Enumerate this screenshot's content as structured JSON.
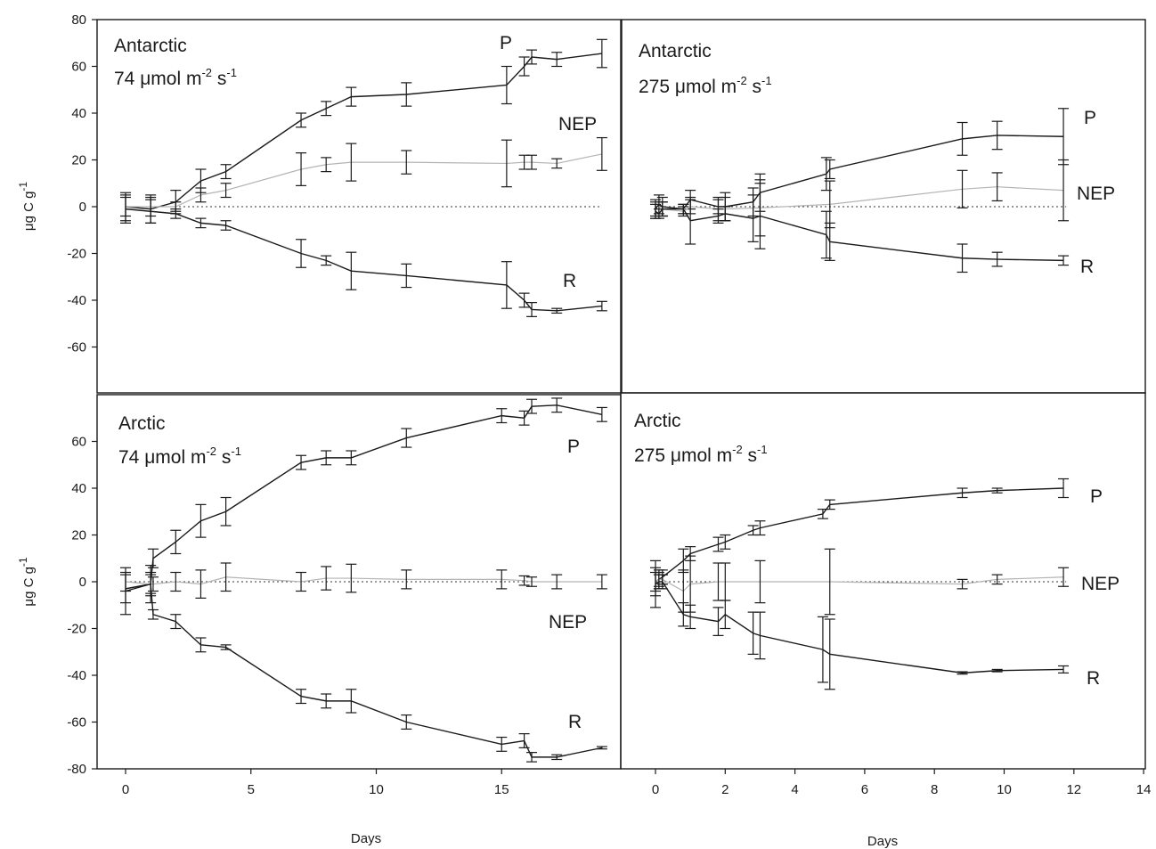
{
  "chart_data": [
    {
      "type": "line",
      "panel": "top-left",
      "title_line1": "Antarctic",
      "title_line2_value": "74",
      "title_line2_unit": "μmol m",
      "title_exp1": "-2",
      "title_s": "s",
      "title_exp2": "-1",
      "xlabel": "",
      "ylabel_main": "μg C g",
      "ylabel_exp": "-1",
      "xlim": [
        -1,
        20
      ],
      "ylim": [
        -80,
        80
      ],
      "yticks": [
        80,
        60,
        40,
        20,
        0,
        -20,
        -40,
        -60
      ],
      "xticks": [],
      "series": [
        {
          "name": "P",
          "color": "#1a1a1a",
          "x": [
            0,
            1,
            2,
            3,
            4,
            7,
            8,
            9,
            11.2,
            15.2,
            15.9,
            16.2,
            17.2,
            19
          ],
          "y": [
            0,
            -1,
            2,
            11,
            15,
            37,
            42,
            47,
            48,
            52,
            60,
            64,
            63,
            65.5
          ],
          "err": [
            6,
            6,
            5,
            5,
            3,
            3,
            3,
            4,
            5,
            8,
            4,
            3,
            3,
            6
          ]
        },
        {
          "name": "NEP",
          "color": "#b4b4b4",
          "x": [
            0,
            1,
            2,
            3,
            4,
            7,
            8,
            9,
            11.2,
            15.2,
            15.9,
            16.2,
            17.2,
            19
          ],
          "y": [
            0,
            0,
            0,
            5,
            7,
            16,
            18,
            19,
            19,
            18.5,
            19,
            19,
            18.5,
            22.5
          ],
          "err": [
            4,
            4,
            2,
            3,
            3,
            7,
            3,
            8,
            5,
            10,
            3,
            3,
            2,
            7
          ]
        },
        {
          "name": "R",
          "color": "#1a1a1a",
          "x": [
            0,
            1,
            2,
            3,
            4,
            7,
            8,
            9,
            11.2,
            15.2,
            15.9,
            16.2,
            17.2,
            19
          ],
          "y": [
            -1,
            -2,
            -3,
            -7,
            -8,
            -20,
            -23,
            -27.5,
            -29.5,
            -33.5,
            -40,
            -44,
            -44.5,
            -42.5
          ],
          "err": [
            6,
            5,
            2,
            2,
            2,
            6,
            2,
            8,
            5,
            10,
            3,
            3,
            1,
            2
          ]
        }
      ]
    },
    {
      "type": "line",
      "panel": "top-right",
      "title_line1": "Antarctic",
      "title_line2_value": "275",
      "title_line2_unit": "μmol m",
      "title_exp1": "-2",
      "title_s": "s",
      "title_exp2": "-1",
      "xlabel": "",
      "xlim": [
        -1,
        14
      ],
      "ylim": [
        -80,
        80
      ],
      "yticks": [],
      "xticks": [],
      "series": [
        {
          "name": "P",
          "color": "#1a1a1a",
          "x": [
            0,
            0.1,
            0.2,
            0.8,
            1,
            1.8,
            2,
            2.8,
            3,
            4.9,
            5,
            8.8,
            9.8,
            11.7
          ],
          "y": [
            -1,
            1,
            0,
            -1,
            3,
            0,
            0,
            2,
            6,
            14,
            16,
            29,
            30.5,
            30
          ],
          "err": [
            4,
            4,
            4,
            2,
            4,
            3,
            6,
            6,
            8,
            7,
            4,
            7,
            6,
            12
          ]
        },
        {
          "name": "NEP",
          "color": "#b4b4b4",
          "x": [
            0,
            0.2,
            0.8,
            1,
            1.8,
            2,
            3,
            5,
            8.8,
            9.8,
            11.7
          ],
          "y": [
            -1,
            -1,
            -2,
            0,
            -1,
            -1,
            -0.5,
            1,
            7.5,
            8.5,
            7
          ],
          "err": [
            3,
            3,
            2,
            3,
            5,
            5,
            12,
            10,
            8,
            6,
            13
          ]
        },
        {
          "name": "R",
          "color": "#1a1a1a",
          "x": [
            0,
            0.1,
            0.2,
            0.8,
            1,
            1.8,
            2,
            2.8,
            3,
            4.9,
            5,
            8.8,
            9.8,
            11.7
          ],
          "y": [
            -2,
            -3,
            -1,
            -1,
            -6,
            -4,
            -3,
            -5,
            -4,
            -12,
            -15,
            -22,
            -22.5,
            -23
          ],
          "err": [
            3,
            2,
            3,
            2,
            10,
            3,
            3,
            10,
            14,
            10,
            8,
            6,
            3,
            2
          ]
        }
      ]
    },
    {
      "type": "line",
      "panel": "bottom-left",
      "title_line1": "Arctic",
      "title_line2_value": "74",
      "title_line2_unit": "μmol m",
      "title_exp1": "-2",
      "title_s": "s",
      "title_exp2": "-1",
      "xlabel": "Days",
      "ylabel_main": "μg C g",
      "ylabel_exp": "-1",
      "xlim": [
        -1,
        20
      ],
      "ylim": [
        -80,
        80
      ],
      "yticks": [
        60,
        40,
        20,
        0,
        -20,
        -40,
        -60,
        -80
      ],
      "xticks": [
        0,
        5,
        10,
        15
      ],
      "series": [
        {
          "name": "P",
          "color": "#1a1a1a",
          "x": [
            0,
            1,
            1.1,
            2,
            3,
            4,
            7,
            8,
            9,
            11.2,
            15,
            15.9,
            16.2,
            17.2,
            19
          ],
          "y": [
            -3,
            -1,
            10,
            17,
            26,
            30,
            51,
            53,
            53,
            61.5,
            71,
            70,
            75,
            75.5,
            71.5
          ],
          "err": [
            6,
            5,
            4,
            5,
            7,
            6,
            3,
            3,
            3,
            4,
            3,
            3,
            3,
            3,
            3
          ]
        },
        {
          "name": "NEP",
          "color": "#b4b4b4",
          "x": [
            0,
            1,
            1.1,
            2,
            3,
            4,
            7,
            8,
            9,
            11.2,
            15,
            15.9,
            16.2,
            17.2,
            19
          ],
          "y": [
            0,
            -1,
            -1,
            0,
            -1,
            2,
            0,
            1.5,
            1.5,
            1,
            1,
            0.5,
            0,
            0,
            0
          ],
          "err": [
            4,
            4,
            3,
            4,
            6,
            6,
            4,
            5,
            6,
            4,
            4,
            2,
            2,
            3,
            3
          ]
        },
        {
          "name": "R",
          "color": "#1a1a1a",
          "x": [
            0,
            1,
            1.1,
            2,
            3,
            4,
            7,
            8,
            9,
            11.2,
            15,
            15.9,
            16.2,
            17.2,
            19
          ],
          "y": [
            -4,
            -1,
            -14,
            -17,
            -27,
            -28,
            -49,
            -51,
            -51,
            -60,
            -69.5,
            -68,
            -75,
            -75,
            -71
          ],
          "err": [
            10,
            8,
            2,
            3,
            3,
            1,
            3,
            3,
            5,
            3,
            3,
            3,
            2,
            1,
            0.5
          ]
        }
      ]
    },
    {
      "type": "line",
      "panel": "bottom-right",
      "title_line1": "Arctic",
      "title_line2_value": "275",
      "title_line2_unit": "μmol m",
      "title_exp1": "-2",
      "title_s": "s",
      "title_exp2": "-1",
      "xlabel": "Days",
      "xlim": [
        -1,
        14
      ],
      "ylim": [
        -80,
        80
      ],
      "yticks": [],
      "xticks": [
        0,
        2,
        4,
        6,
        8,
        10,
        12,
        14
      ],
      "series": [
        {
          "name": "P",
          "color": "#1a1a1a",
          "x": [
            0,
            0.1,
            0.2,
            0.8,
            1,
            1.8,
            2,
            2.8,
            3,
            4.8,
            5,
            8.8,
            9.8,
            11.7
          ],
          "y": [
            0,
            1,
            2,
            9,
            12,
            16,
            17,
            22,
            23,
            29,
            33,
            38,
            39,
            40
          ],
          "err": [
            6,
            4,
            3,
            5,
            3,
            3,
            3,
            2,
            3,
            2,
            2,
            2,
            1,
            4
          ]
        },
        {
          "name": "NEP",
          "color": "#b4b4b4",
          "x": [
            0,
            0.1,
            0.2,
            0.8,
            1,
            1.8,
            2,
            3,
            5,
            8.8,
            9.8,
            11.7
          ],
          "y": [
            0,
            1,
            1,
            -4,
            -1,
            0,
            0,
            0,
            0,
            -1,
            1,
            2
          ],
          "err": [
            4,
            3,
            2,
            9,
            12,
            8,
            8,
            9,
            14,
            2,
            2,
            4
          ]
        },
        {
          "name": "R",
          "color": "#1a1a1a",
          "x": [
            0,
            0.1,
            0.2,
            0.8,
            1,
            1.8,
            2,
            2.8,
            3,
            4.8,
            5,
            8.8,
            9.8,
            11.7
          ],
          "y": [
            -1,
            0,
            0,
            -14,
            -15,
            -17,
            -14,
            -22,
            -23,
            -29,
            -31,
            -39,
            -38,
            -37.5
          ],
          "err": [
            10,
            3,
            3,
            5,
            5,
            6,
            6,
            9,
            10,
            14,
            15,
            0.5,
            0.5,
            1.5
          ]
        }
      ]
    }
  ]
}
